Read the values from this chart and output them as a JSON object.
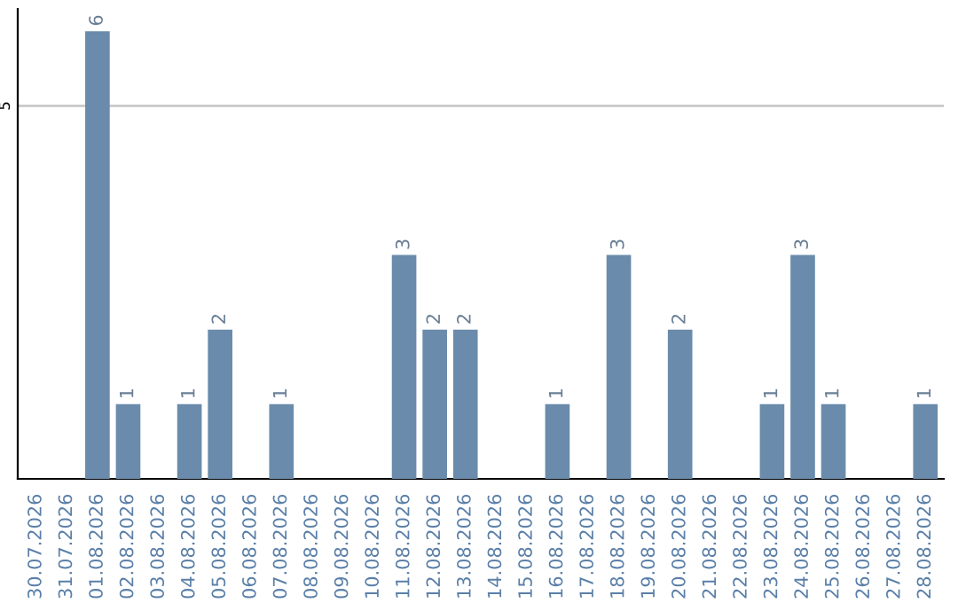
{
  "chart_data": {
    "type": "bar",
    "categories": [
      "30.07.2026",
      "31.07.2026",
      "01.08.2026",
      "02.08.2026",
      "03.08.2026",
      "04.08.2026",
      "05.08.2026",
      "06.08.2026",
      "07.08.2026",
      "08.08.2026",
      "09.08.2026",
      "10.08.2026",
      "11.08.2026",
      "12.08.2026",
      "13.08.2026",
      "14.08.2026",
      "15.08.2026",
      "16.08.2026",
      "17.08.2026",
      "18.08.2026",
      "19.08.2026",
      "20.08.2026",
      "21.08.2026",
      "22.08.2026",
      "23.08.2026",
      "24.08.2026",
      "25.08.2026",
      "26.08.2026",
      "27.08.2026",
      "28.08.2026"
    ],
    "values": [
      0,
      0,
      6,
      1,
      0,
      1,
      2,
      0,
      1,
      0,
      0,
      0,
      3,
      2,
      2,
      0,
      0,
      1,
      0,
      3,
      0,
      2,
      0,
      0,
      1,
      3,
      1,
      0,
      0,
      1
    ],
    "value_labels": [
      null,
      null,
      "6",
      "1",
      null,
      "1",
      "2",
      null,
      "1",
      null,
      null,
      null,
      "3",
      "2",
      "2",
      null,
      null,
      "1",
      null,
      "3",
      null,
      "2",
      null,
      null,
      "1",
      "3",
      "1",
      null,
      null,
      "1"
    ],
    "color": "#6a8bab",
    "ylim": [
      0,
      6.3
    ],
    "yticks": [
      5
    ],
    "grid": "y",
    "legend": false
  }
}
